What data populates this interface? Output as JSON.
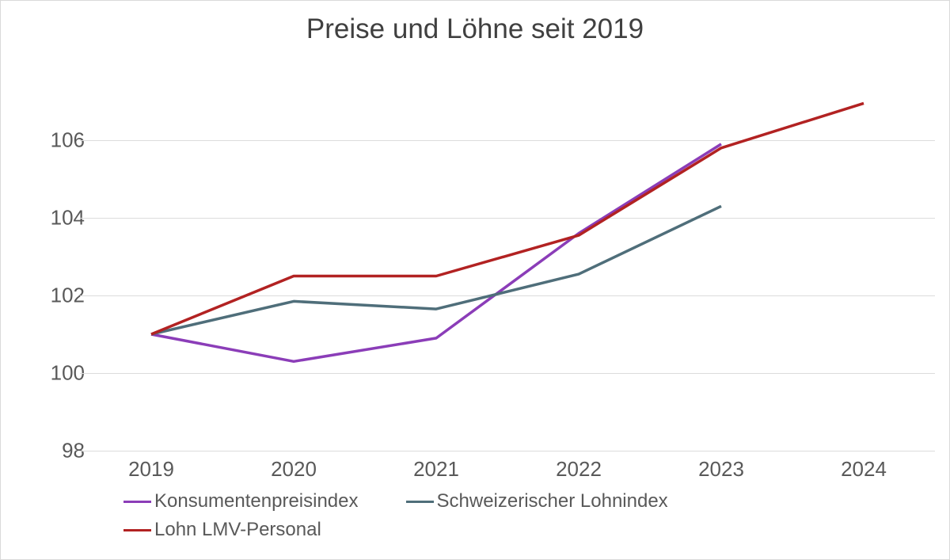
{
  "chart": {
    "type": "line",
    "title": "Preise und Löhne seit 2019",
    "title_fontsize": 35,
    "background_color": "#ffffff",
    "border_color": "#d9d9d9",
    "grid_color": "#dcdcdc",
    "text_color": "#595959",
    "axis_fontsize": 26,
    "legend_fontsize": 24,
    "ylim": [
      97,
      107
    ],
    "yticks": [
      98,
      100,
      102,
      104,
      106
    ],
    "categories": [
      "2019",
      "2020",
      "2021",
      "2022",
      "2023",
      "2024"
    ],
    "line_width": 3.5,
    "series": [
      {
        "name": "Konsumentenpreisindex",
        "color": "#8b3db8",
        "values": [
          100.0,
          99.3,
          99.9,
          102.6,
          104.9,
          null
        ]
      },
      {
        "name": "Schweizerischer Lohnindex",
        "color": "#4f6e7a",
        "values": [
          100.0,
          100.85,
          100.65,
          101.55,
          103.3,
          null
        ]
      },
      {
        "name": "Lohn LMV-Personal",
        "color": "#b22222",
        "values": [
          100.0,
          101.5,
          101.5,
          102.55,
          104.8,
          105.95
        ]
      }
    ]
  }
}
